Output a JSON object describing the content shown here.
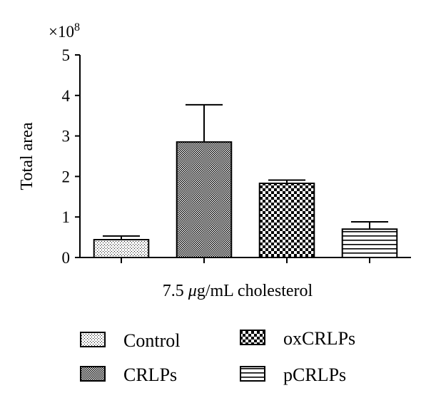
{
  "chart_data": {
    "type": "bar",
    "categories": [
      "Control",
      "CRLPs",
      "oxCRLPs",
      "pCRLPs"
    ],
    "values": [
      0.44,
      2.85,
      1.83,
      0.7
    ],
    "errors": [
      0.09,
      0.92,
      0.08,
      0.18
    ],
    "patterns": [
      "sparse-dots",
      "fine-checker",
      "coarse-checker",
      "horizontal-lines"
    ],
    "scale_label": "×10",
    "scale_exponent": "8",
    "xlabel_prefix": "7.5 ",
    "xlabel_mu": "μ",
    "xlabel_suffix": "g/mL cholesterol",
    "ylabel": "Total area",
    "ylim": [
      0,
      5
    ],
    "yticks": [
      "0",
      "1",
      "2",
      "3",
      "4",
      "5"
    ],
    "legend": [
      "Control",
      "CRLPs",
      "oxCRLPs",
      "pCRLPs"
    ],
    "legend_position": "bottom",
    "grid": false
  }
}
